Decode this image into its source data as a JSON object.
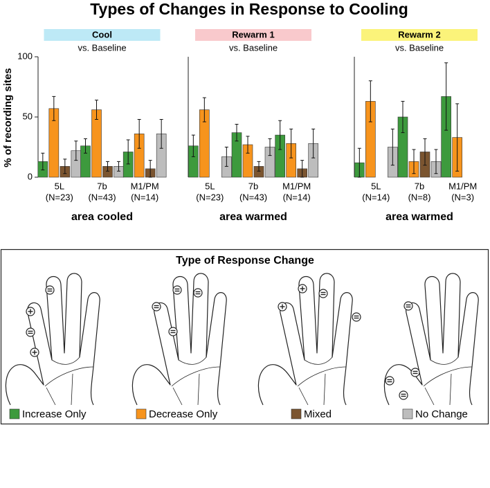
{
  "title": "Types of Changes in Response to Cooling",
  "ylabel": "% of recording sites",
  "legend_title": "Type of Response Change",
  "chart_data": [
    {
      "type": "bar",
      "title": "Cool",
      "title_color": "#bde9f6",
      "subtitle": "vs. Baseline",
      "xlabel": "area cooled",
      "categories": [
        "5L",
        "7b",
        "M1/PM"
      ],
      "sample_sizes": [
        "(N=23)",
        "(N=43)",
        "(N=14)"
      ],
      "ylim": [
        0,
        100
      ],
      "yticks": [
        0,
        50,
        100
      ],
      "series": [
        {
          "name": "Increase Only",
          "color": "#3d9a3d",
          "values": [
            13,
            26,
            21
          ],
          "errors": [
            7,
            6,
            10
          ]
        },
        {
          "name": "Decrease Only",
          "color": "#f7941d",
          "values": [
            57,
            56,
            36
          ],
          "errors": [
            10,
            8,
            12
          ]
        },
        {
          "name": "Mixed",
          "color": "#7b5530",
          "values": [
            9,
            9,
            7
          ],
          "errors": [
            6,
            4,
            7
          ]
        },
        {
          "name": "No Change",
          "color": "#bdbdbd",
          "values": [
            22,
            9,
            36
          ],
          "errors": [
            8,
            4,
            12
          ]
        }
      ]
    },
    {
      "type": "bar",
      "title": "Rewarm 1",
      "title_color": "#f9c9cc",
      "subtitle": "vs. Baseline",
      "xlabel": "area warmed",
      "categories": [
        "5L",
        "7b",
        "M1/PM"
      ],
      "sample_sizes": [
        "(N=23)",
        "(N=43)",
        "(N=14)"
      ],
      "ylim": [
        0,
        100
      ],
      "series": [
        {
          "color": "#3d9a3d",
          "values": [
            26,
            37,
            35
          ],
          "errors": [
            9,
            7,
            12
          ]
        },
        {
          "color": "#f7941d",
          "values": [
            56,
            27,
            28
          ],
          "errors": [
            10,
            7,
            12
          ]
        },
        {
          "color": "#7b5530",
          "values": [
            0,
            9,
            7
          ],
          "errors": [
            null,
            4,
            7
          ]
        },
        {
          "color": "#bdbdbd",
          "values": [
            17,
            25,
            28
          ],
          "errors": [
            8,
            7,
            12
          ]
        }
      ]
    },
    {
      "type": "bar",
      "title": "Rewarm 2",
      "title_color": "#fbf37a",
      "subtitle": "vs. Baseline",
      "xlabel": "area warmed",
      "categories": [
        "5L",
        "7b",
        "M1/PM"
      ],
      "sample_sizes": [
        "(N=14)",
        "(N=8)",
        "(N=3)"
      ],
      "ylim": [
        0,
        100
      ],
      "series": [
        {
          "color": "#3d9a3d",
          "values": [
            12,
            50,
            67
          ],
          "errors": [
            12,
            13,
            28
          ]
        },
        {
          "color": "#f7941d",
          "values": [
            63,
            13,
            33
          ],
          "errors": [
            17,
            10,
            28
          ]
        },
        {
          "color": "#7b5530",
          "values": [
            0,
            21,
            0
          ],
          "errors": [
            null,
            11,
            null
          ]
        },
        {
          "color": "#bdbdbd",
          "values": [
            25,
            13,
            0
          ],
          "errors": [
            15,
            10,
            null
          ]
        }
      ]
    }
  ]
}
